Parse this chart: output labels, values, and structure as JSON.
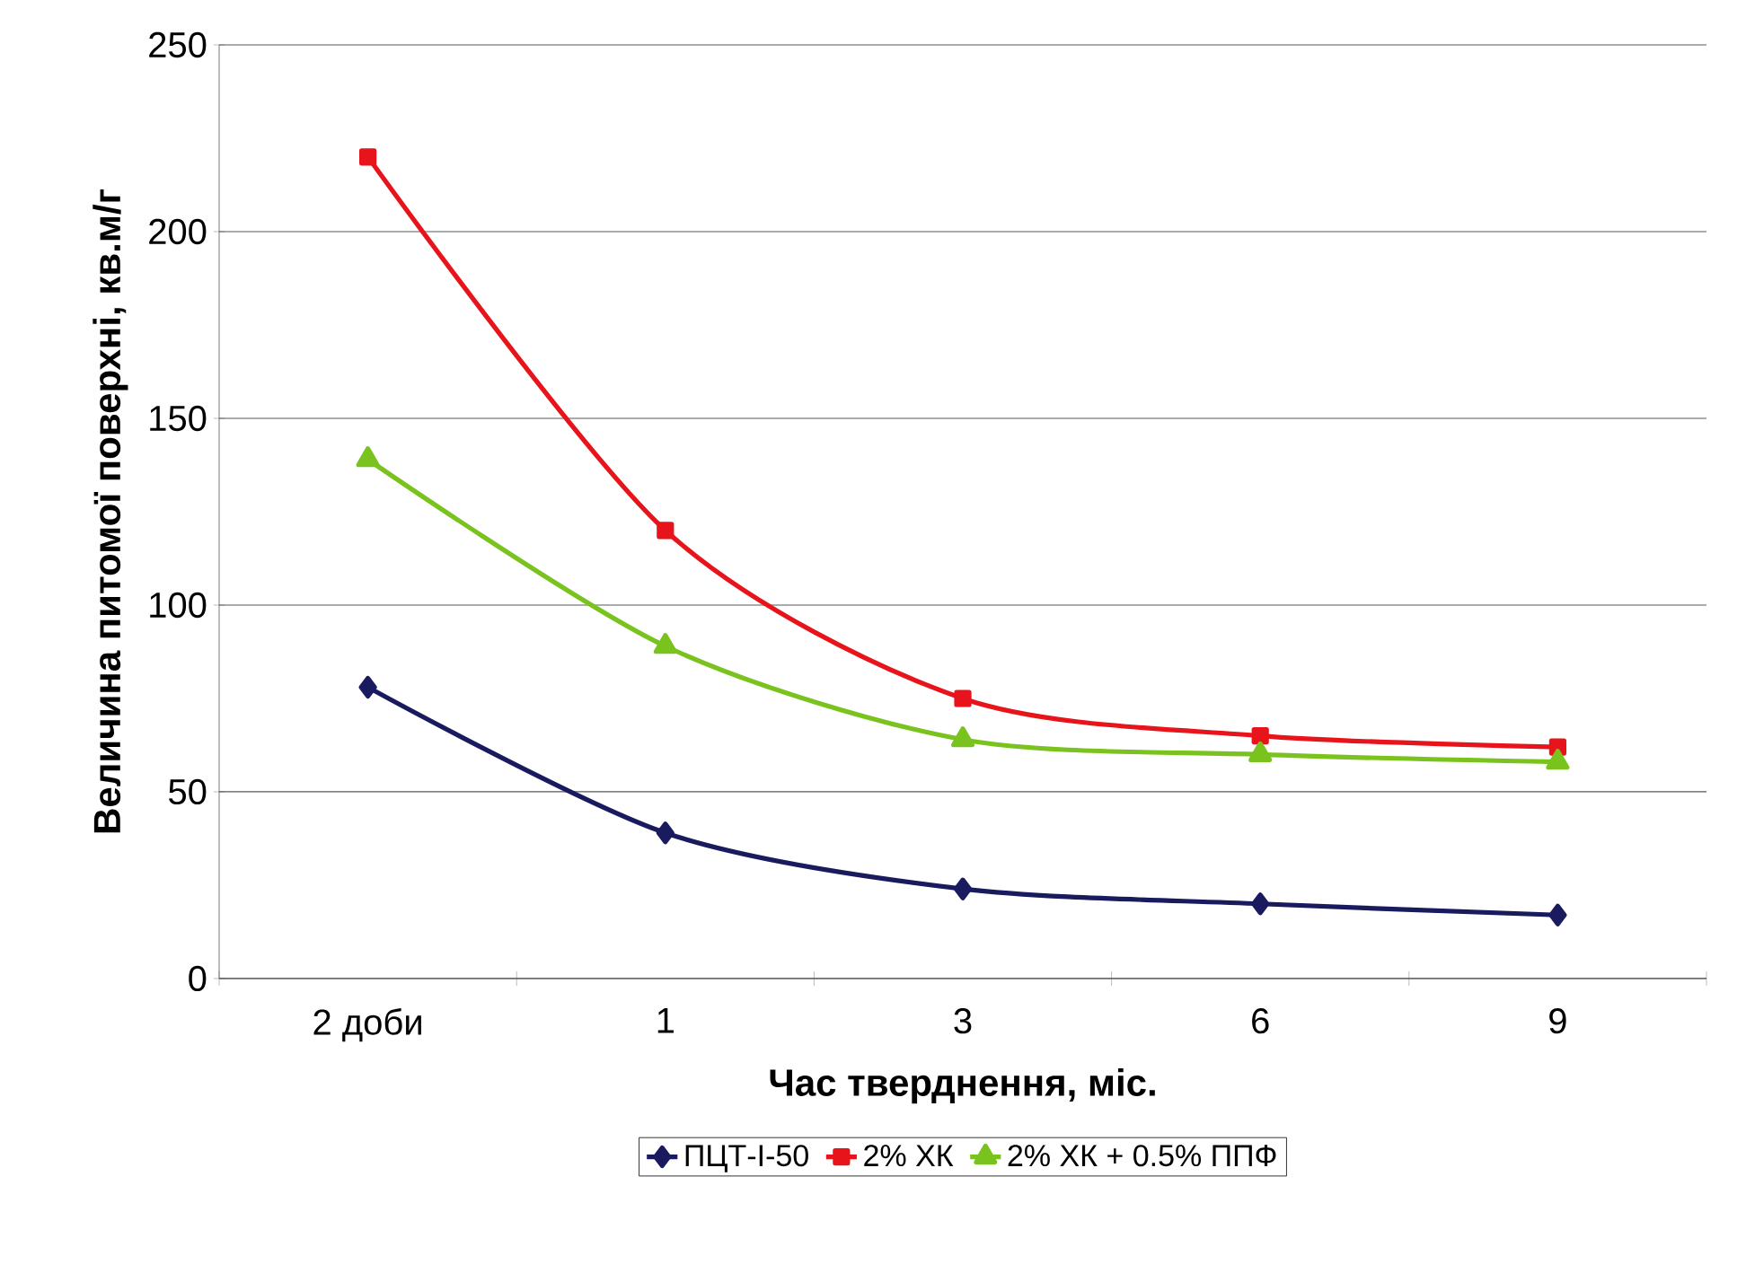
{
  "chart_data": {
    "type": "line",
    "xlabel": "Час тверднення, міс.",
    "ylabel": "Величина питомої поверхні, кв.м/г",
    "categories": [
      "2 доби",
      "1",
      "3",
      "6",
      "9"
    ],
    "series": [
      {
        "name": "ПЦТ-І-50",
        "color": "#1a1a5e",
        "marker": "diamond",
        "values": [
          78,
          39,
          24,
          20,
          17
        ]
      },
      {
        "name": "2% ХК",
        "color": "#e8141b",
        "marker": "square",
        "values": [
          220,
          120,
          75,
          65,
          62
        ]
      },
      {
        "name": "2% ХК  + 0.5% ППФ",
        "color": "#7ac31f",
        "marker": "triangle",
        "values": [
          139,
          89,
          64,
          60,
          58
        ]
      }
    ],
    "ylim": [
      0,
      250
    ],
    "yticks": [
      0,
      50,
      100,
      150,
      200,
      250
    ],
    "grid": "y",
    "legend": "bottom"
  }
}
